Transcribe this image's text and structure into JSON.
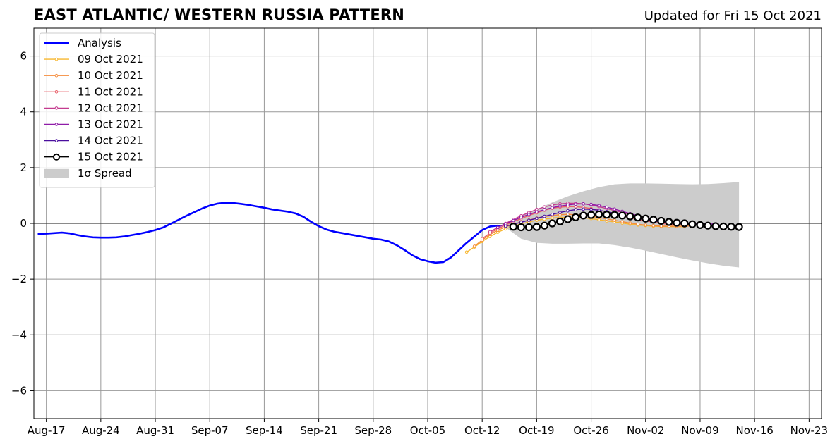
{
  "title": "EAST ATLANTIC/ WESTERN RUSSIA PATTERN",
  "subtitle": "Updated for Fri 15 Oct 2021",
  "chart_data": {
    "type": "line",
    "title": "EAST ATLANTIC/ WESTERN RUSSIA PATTERN",
    "xlabel": "",
    "ylabel": "",
    "x_range_days": [
      -1.6,
      99.6
    ],
    "ylim": [
      -7,
      7
    ],
    "grid": true,
    "legend_placement": "top-left",
    "x_ticks": [
      {
        "label": "Aug-17",
        "day": 0
      },
      {
        "label": "Aug-24",
        "day": 7
      },
      {
        "label": "Aug-31",
        "day": 14
      },
      {
        "label": "Sep-07",
        "day": 21
      },
      {
        "label": "Sep-14",
        "day": 28
      },
      {
        "label": "Sep-21",
        "day": 35
      },
      {
        "label": "Sep-28",
        "day": 42
      },
      {
        "label": "Oct-05",
        "day": 49
      },
      {
        "label": "Oct-12",
        "day": 56
      },
      {
        "label": "Oct-19",
        "day": 63
      },
      {
        "label": "Oct-26",
        "day": 70
      },
      {
        "label": "Nov-02",
        "day": 77
      },
      {
        "label": "Nov-09",
        "day": 84
      },
      {
        "label": "Nov-16",
        "day": 91
      },
      {
        "label": "Nov-23",
        "day": 98
      }
    ],
    "y_ticks": [
      {
        "label": "6",
        "value": 6
      },
      {
        "label": "4",
        "value": 4
      },
      {
        "label": "2",
        "value": 2
      },
      {
        "label": "0",
        "value": 0
      },
      {
        "label": "−2",
        "value": -2
      },
      {
        "label": "−4",
        "value": -4
      },
      {
        "label": "−6",
        "value": -6
      }
    ],
    "analysis": {
      "name": "Analysis",
      "color": "#0000ff",
      "x": [
        -1.1,
        0,
        1,
        2,
        3,
        4,
        5,
        6,
        7,
        8,
        9,
        10,
        11,
        12,
        13,
        14,
        15,
        16,
        17,
        18,
        19,
        20,
        21,
        22,
        23,
        24,
        25,
        26,
        27,
        28,
        29,
        30,
        31,
        32,
        33,
        34,
        35,
        36,
        37,
        38,
        39,
        40,
        41,
        42,
        43,
        44,
        45,
        46,
        47,
        48,
        49,
        50,
        51,
        52,
        53,
        54,
        55,
        56,
        57,
        58,
        58.3
      ],
      "y": [
        -0.38,
        -0.37,
        -0.35,
        -0.33,
        -0.36,
        -0.42,
        -0.47,
        -0.5,
        -0.51,
        -0.51,
        -0.5,
        -0.47,
        -0.42,
        -0.37,
        -0.31,
        -0.24,
        -0.15,
        -0.01,
        0.13,
        0.27,
        0.4,
        0.53,
        0.64,
        0.71,
        0.74,
        0.73,
        0.7,
        0.66,
        0.61,
        0.56,
        0.5,
        0.46,
        0.42,
        0.36,
        0.24,
        0.06,
        -0.1,
        -0.22,
        -0.3,
        -0.35,
        -0.4,
        -0.45,
        -0.5,
        -0.55,
        -0.58,
        -0.65,
        -0.78,
        -0.95,
        -1.14,
        -1.28,
        -1.36,
        -1.41,
        -1.39,
        -1.22,
        -0.96,
        -0.7,
        -0.47,
        -0.24,
        -0.11,
        -0.08,
        -0.1
      ]
    },
    "spread": {
      "name": "1σ Spread",
      "color": "#cccccc",
      "x": [
        59,
        61,
        63,
        65,
        67,
        69,
        71,
        73,
        75,
        77,
        79,
        81,
        83,
        85,
        87,
        89
      ],
      "upper": [
        -0.05,
        0.25,
        0.5,
        0.75,
        0.97,
        1.15,
        1.3,
        1.4,
        1.43,
        1.43,
        1.42,
        1.41,
        1.4,
        1.41,
        1.44,
        1.48
      ],
      "lower": [
        -0.15,
        -0.55,
        -0.7,
        -0.73,
        -0.73,
        -0.72,
        -0.72,
        -0.78,
        -0.87,
        -0.98,
        -1.1,
        -1.22,
        -1.33,
        -1.43,
        -1.52,
        -1.58
      ]
    },
    "series": [
      {
        "name": "09 Oct 2021",
        "color": "#f7b62d",
        "x": [
          54,
          55,
          56,
          57,
          58,
          59,
          60,
          61,
          62,
          63,
          64,
          65,
          66,
          67,
          68,
          69,
          70,
          71,
          72,
          73,
          74,
          75,
          76,
          77,
          78,
          79,
          80,
          81,
          82
        ],
        "y": [
          -1.03,
          -0.85,
          -0.65,
          -0.47,
          -0.32,
          -0.2,
          -0.1,
          -0.02,
          0.05,
          0.11,
          0.15,
          0.19,
          0.21,
          0.22,
          0.22,
          0.2,
          0.17,
          0.13,
          0.09,
          0.05,
          0.01,
          -0.03,
          -0.06,
          -0.08,
          -0.1,
          -0.11,
          -0.12,
          -0.12,
          -0.12
        ]
      },
      {
        "name": "10 Oct 2021",
        "color": "#f58c3c",
        "x": [
          55,
          56,
          57,
          58,
          59,
          60,
          61,
          62,
          63,
          64,
          65,
          66,
          67,
          68,
          69,
          70,
          71,
          72,
          73,
          74,
          75,
          76,
          77,
          78,
          79,
          80,
          81,
          82,
          83
        ],
        "y": [
          -0.82,
          -0.6,
          -0.4,
          -0.25,
          -0.13,
          -0.03,
          0.05,
          0.12,
          0.19,
          0.24,
          0.28,
          0.31,
          0.32,
          0.31,
          0.29,
          0.25,
          0.21,
          0.16,
          0.11,
          0.06,
          0.01,
          -0.03,
          -0.06,
          -0.08,
          -0.1,
          -0.1,
          -0.1,
          -0.1,
          -0.09
        ]
      },
      {
        "name": "11 Oct 2021",
        "color": "#e8606a",
        "x": [
          56,
          57,
          58,
          59,
          60,
          61,
          62,
          63,
          64,
          65,
          66,
          67,
          68,
          69,
          70,
          71,
          72,
          73,
          74,
          75,
          76,
          77,
          78,
          79,
          80,
          81,
          82,
          83,
          84
        ],
        "y": [
          -0.55,
          -0.35,
          -0.2,
          -0.06,
          0.06,
          0.17,
          0.28,
          0.38,
          0.47,
          0.54,
          0.58,
          0.6,
          0.6,
          0.57,
          0.53,
          0.47,
          0.41,
          0.34,
          0.27,
          0.2,
          0.14,
          0.09,
          0.04,
          0.0,
          -0.03,
          -0.05,
          -0.06,
          -0.06,
          -0.05
        ]
      },
      {
        "name": "12 Oct 2021",
        "color": "#c43b8f",
        "x": [
          57,
          58,
          59,
          60,
          61,
          62,
          63,
          64,
          65,
          66,
          67,
          68,
          69,
          70,
          71,
          72,
          73,
          74,
          75,
          76,
          77,
          78,
          79,
          80,
          81,
          82,
          83,
          84,
          85
        ],
        "y": [
          -0.3,
          -0.15,
          0.0,
          0.14,
          0.27,
          0.39,
          0.5,
          0.59,
          0.66,
          0.7,
          0.72,
          0.72,
          0.7,
          0.66,
          0.6,
          0.53,
          0.46,
          0.39,
          0.32,
          0.25,
          0.19,
          0.14,
          0.1,
          0.06,
          0.03,
          0.01,
          0.0,
          -0.01,
          -0.02
        ]
      },
      {
        "name": "13 Oct 2021",
        "color": "#8f1ca8",
        "x": [
          58,
          59,
          60,
          61,
          62,
          63,
          64,
          65,
          66,
          67,
          68,
          69,
          70,
          71,
          72,
          73,
          74,
          75,
          76,
          77,
          78,
          79,
          80,
          81,
          82,
          83,
          84,
          85,
          86
        ],
        "y": [
          -0.15,
          -0.02,
          0.1,
          0.22,
          0.32,
          0.41,
          0.49,
          0.56,
          0.62,
          0.66,
          0.69,
          0.7,
          0.68,
          0.64,
          0.58,
          0.51,
          0.43,
          0.35,
          0.28,
          0.22,
          0.16,
          0.11,
          0.07,
          0.04,
          0.02,
          0.0,
          -0.01,
          -0.02,
          -0.02
        ]
      },
      {
        "name": "14 Oct 2021",
        "color": "#4a0f9e",
        "x": [
          59,
          60,
          61,
          62,
          63,
          64,
          65,
          66,
          67,
          68,
          69,
          70,
          71,
          72,
          73,
          74,
          75,
          76,
          77,
          78,
          79,
          80,
          81,
          82,
          83,
          84,
          85,
          86,
          87
        ],
        "y": [
          -0.1,
          -0.03,
          0.04,
          0.11,
          0.18,
          0.25,
          0.32,
          0.39,
          0.45,
          0.49,
          0.51,
          0.5,
          0.47,
          0.42,
          0.36,
          0.3,
          0.24,
          0.18,
          0.13,
          0.09,
          0.05,
          0.02,
          0.0,
          -0.02,
          -0.04,
          -0.05,
          -0.06,
          -0.06,
          -0.06
        ]
      },
      {
        "name": "15 Oct 2021",
        "color": "#000000",
        "marker": "open-circle",
        "x": [
          60,
          61,
          62,
          63,
          64,
          65,
          66,
          67,
          68,
          69,
          70,
          71,
          72,
          73,
          74,
          75,
          76,
          77,
          78,
          79,
          80,
          81,
          82,
          83,
          84,
          85,
          86,
          87,
          88,
          89
        ],
        "y": [
          -0.12,
          -0.14,
          -0.14,
          -0.13,
          -0.08,
          0.0,
          0.07,
          0.15,
          0.22,
          0.28,
          0.3,
          0.32,
          0.31,
          0.3,
          0.28,
          0.25,
          0.21,
          0.17,
          0.13,
          0.09,
          0.05,
          0.02,
          0.0,
          -0.03,
          -0.06,
          -0.08,
          -0.1,
          -0.11,
          -0.12,
          -0.13
        ]
      }
    ]
  }
}
